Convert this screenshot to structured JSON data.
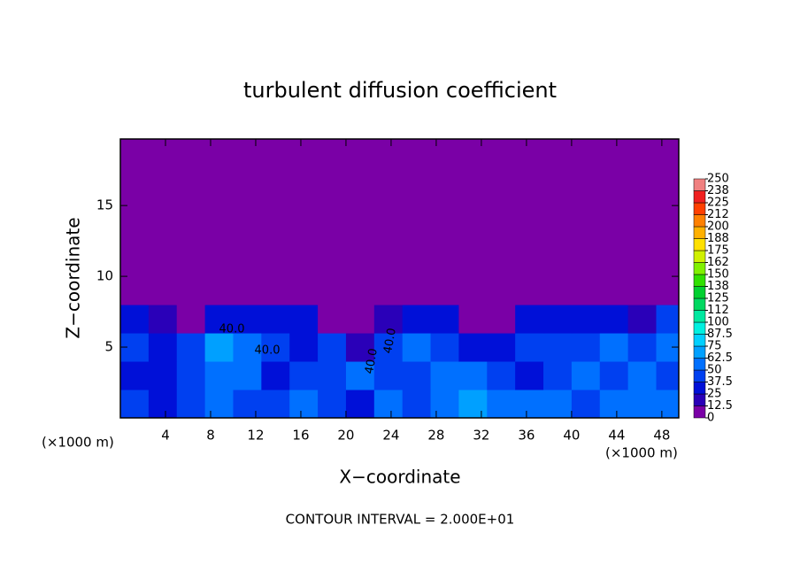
{
  "chart_data": {
    "type": "heatmap",
    "title": "turbulent diffusion coefficient",
    "xlabel": "X−coordinate",
    "ylabel": "Z−coordinate",
    "xunit_left": "(×1000 m)",
    "xunit_right": "(×1000 m)",
    "footnote": "CONTOUR INTERVAL = 2.000E+01",
    "contour_labels": [
      "40.0",
      "40.0",
      "40.0",
      "40.0"
    ],
    "xlim": [
      0,
      49.5
    ],
    "ylim": [
      0,
      19.7
    ],
    "xticks": [
      4,
      8,
      12,
      16,
      20,
      24,
      28,
      32,
      36,
      40,
      44,
      48
    ],
    "yticks": [
      5,
      10,
      15
    ],
    "x_edges": [
      0,
      2.5,
      5,
      7.5,
      10,
      12.5,
      15,
      17.5,
      20,
      22.5,
      25,
      27.5,
      30,
      32.5,
      35,
      37.5,
      40,
      42.5,
      45,
      47.5,
      49.5
    ],
    "z_edges": [
      0,
      2,
      4,
      6,
      8,
      19.7
    ],
    "values": [
      [
        45,
        35,
        40,
        60,
        45,
        40,
        50,
        40,
        30,
        60,
        45,
        55,
        65,
        60,
        55,
        50,
        45,
        60,
        55,
        50
      ],
      [
        35,
        30,
        40,
        55,
        50,
        35,
        45,
        40,
        55,
        45,
        40,
        55,
        50,
        40,
        35,
        40,
        55,
        45,
        50,
        45
      ],
      [
        40,
        35,
        40,
        65,
        55,
        45,
        35,
        45,
        15,
        40,
        55,
        45,
        30,
        35,
        40,
        40,
        45,
        50,
        45,
        50
      ],
      [
        30,
        15,
        10,
        25,
        30,
        35,
        25,
        5,
        0,
        20,
        30,
        25,
        5,
        10,
        35,
        35,
        30,
        35,
        15,
        40
      ],
      [
        0,
        0,
        0,
        0,
        0,
        0,
        0,
        0,
        0,
        0,
        0,
        0,
        0,
        0,
        0,
        0,
        0,
        0,
        0,
        0
      ]
    ],
    "colorbar_ticks": [
      0,
      12.5,
      25,
      37.5,
      50,
      62.5,
      75,
      87.5,
      100,
      112,
      125,
      138,
      150,
      162,
      175,
      188,
      200,
      212,
      225,
      238,
      250
    ],
    "colors": [
      "#7a00a6",
      "#2a00b8",
      "#0010d8",
      "#0040f0",
      "#0070ff",
      "#00a0ff",
      "#00d0ff",
      "#00f0e0",
      "#00e8a0",
      "#00d860",
      "#00d030",
      "#30e000",
      "#80f000",
      "#d0f000",
      "#ffe000",
      "#ffb000",
      "#ff8000",
      "#ff4000",
      "#f02020",
      "#f08080"
    ]
  }
}
